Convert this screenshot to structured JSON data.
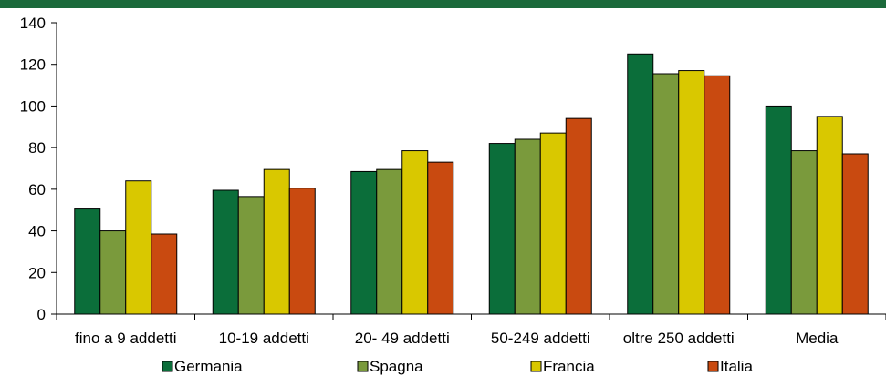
{
  "chart_data": {
    "type": "bar",
    "title": "",
    "xlabel": "",
    "ylabel": "",
    "ylim": [
      0,
      140
    ],
    "yticks": [
      0,
      20,
      40,
      60,
      80,
      100,
      120,
      140
    ],
    "grid": false,
    "legend_position": "bottom",
    "categories": [
      "fino a 9 addetti",
      "10-19 addetti",
      "20- 49 addetti",
      "50-249 addetti",
      "oltre 250 addetti",
      "Media"
    ],
    "series": [
      {
        "name": "Germania",
        "color": "#0b6e3a",
        "values": [
          50.5,
          59.5,
          68.5,
          82,
          125,
          100
        ]
      },
      {
        "name": "Spagna",
        "color": "#7a9a3c",
        "values": [
          40,
          56.5,
          69.5,
          84,
          115.5,
          78.5
        ]
      },
      {
        "name": "Francia",
        "color": "#d9c800",
        "values": [
          64,
          69.5,
          78.5,
          87,
          117,
          95
        ]
      },
      {
        "name": "Italia",
        "color": "#c94a10",
        "values": [
          38.5,
          60.5,
          73,
          94,
          114.5,
          77
        ]
      }
    ]
  }
}
